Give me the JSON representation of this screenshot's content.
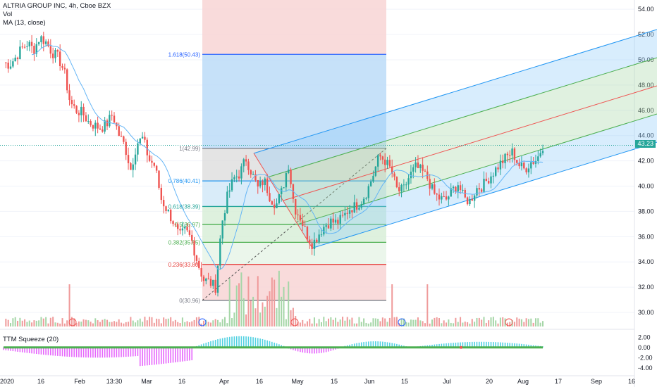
{
  "header": {
    "symbol_line": "ALTRIA GROUP INC, 4h, Cboe BZX",
    "vol_label": "Vol",
    "ma_label": "MA (13, close)",
    "squeeze_label": "TTM Squeeze (20)"
  },
  "colors": {
    "up": "#26a69a",
    "down": "#ef5350",
    "ma": "#64b5f6",
    "fib_red": "#f8d7d7",
    "fib_blue": "#bcdcf8",
    "channel_blue": "#2196f3",
    "channel_green": "#4caf50",
    "channel_red": "#ef5350"
  },
  "chart_data": [
    {
      "type": "candlestick",
      "title": "ALTRIA GROUP INC, 4h, Cboe BZX",
      "x_tick_labels": [
        "2020",
        "16",
        "Feb",
        "13:30",
        "Mar",
        "16",
        "Apr",
        "16",
        "May",
        "15",
        "Jun",
        "15",
        "Jul",
        "20",
        "Aug",
        "17",
        "Sep",
        "16"
      ],
      "y_tick_labels": [
        "54.00",
        "52.00",
        "50.00",
        "48.00",
        "46.00",
        "44.00",
        "42.00",
        "40.00",
        "38.00",
        "36.00",
        "34.00",
        "32.00",
        "30.00"
      ],
      "ylim": [
        29.0,
        54.4
      ],
      "last_price": "43.23",
      "ohlc_series_approx": [
        49.8,
        49.6,
        50.2,
        50.9,
        51.3,
        50.8,
        51.8,
        51.4,
        50.6,
        50.2,
        49.1,
        46.6,
        46.0,
        45.8,
        45.1,
        44.8,
        44.6,
        44.9,
        45.7,
        44.1,
        43.2,
        41.3,
        43.4,
        43.8,
        42.1,
        41.6,
        39.0,
        38.1,
        37.2,
        36.0,
        36.5,
        35.8,
        34.0,
        32.6,
        32.4,
        32.0,
        37.0,
        39.3,
        40.6,
        41.0,
        42.2,
        41.0,
        39.8,
        40.5,
        39.1,
        38.5,
        39.7,
        41.8,
        38.3,
        37.5,
        36.2,
        35.4,
        36.2,
        36.9,
        37.2,
        37.1,
        37.5,
        38.2,
        38.4,
        38.8,
        39.6,
        40.9,
        42.4,
        42.0,
        41.2,
        39.6,
        39.7,
        40.8,
        41.5,
        41.2,
        40.6,
        39.4,
        39.0,
        38.9,
        39.6,
        40.2,
        39.0,
        38.8,
        39.8,
        40.0,
        40.6,
        41.2,
        41.8,
        42.3,
        42.7,
        41.7,
        41.3,
        41.9,
        42.1,
        43.2
      ],
      "ma_label": "MA (13, close)",
      "fibonacci_levels": [
        {
          "label": "1.618(50.43)",
          "price": 50.43
        },
        {
          "label": "1(42.99)",
          "price": 42.99
        },
        {
          "label": "0.786(40.41)",
          "price": 40.41
        },
        {
          "label": "0.618(38.39)",
          "price": 38.39
        },
        {
          "label": "0.5(36.97)",
          "price": 36.97
        },
        {
          "label": "0.382(35.55)",
          "price": 35.55
        },
        {
          "label": "0.236(33.80)",
          "price": 33.8
        },
        {
          "label": "0(30.96)",
          "price": 30.96
        }
      ],
      "volume_label": "Vol"
    },
    {
      "type": "bar",
      "title": "TTM Squeeze (20)",
      "y_tick_labels": [
        "2.00",
        "0.00",
        "-2.00",
        "-4.00"
      ],
      "ylim": [
        -5,
        3
      ]
    }
  ]
}
